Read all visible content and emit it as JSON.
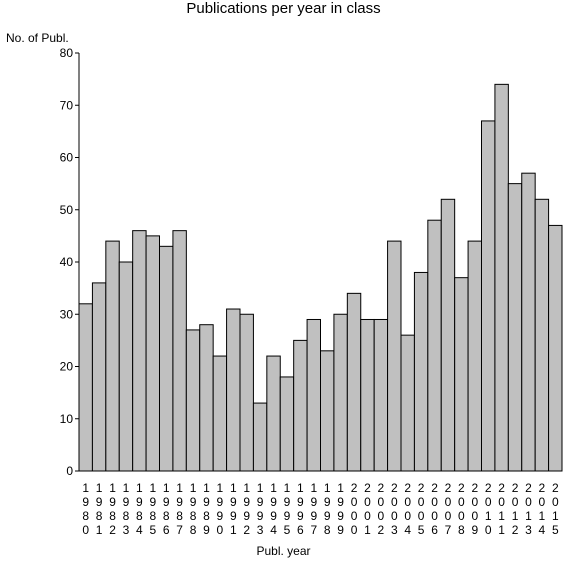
{
  "chart_data": {
    "type": "bar",
    "title": "Publications per year in class",
    "ylabel": "No. of Publ.",
    "xlabel": "Publ. year",
    "ylim": [
      0,
      80
    ],
    "yticks": [
      0,
      10,
      20,
      30,
      40,
      50,
      60,
      70,
      80
    ],
    "grid": false,
    "legend": "none",
    "bar_color": "#c0c0c0",
    "edge_color": "#000000",
    "categories": [
      "1980",
      "1981",
      "1982",
      "1983",
      "1984",
      "1985",
      "1986",
      "1987",
      "1988",
      "1989",
      "1990",
      "1991",
      "1992",
      "1993",
      "1994",
      "1995",
      "1996",
      "1997",
      "1998",
      "1999",
      "2000",
      "2001",
      "2002",
      "2003",
      "2004",
      "2005",
      "2006",
      "2007",
      "2008",
      "2009",
      "2010",
      "2011",
      "2012",
      "2013",
      "2014",
      "2015"
    ],
    "values": [
      32,
      36,
      44,
      40,
      46,
      45,
      43,
      46,
      27,
      28,
      22,
      31,
      30,
      13,
      22,
      18,
      25,
      29,
      23,
      30,
      34,
      29,
      29,
      44,
      26,
      38,
      48,
      52,
      37,
      44,
      67,
      74,
      55,
      57,
      52,
      47
    ]
  }
}
